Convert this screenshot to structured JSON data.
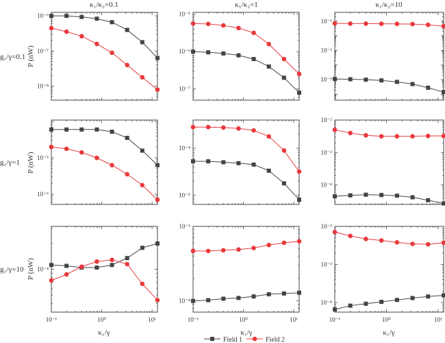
{
  "chart_data": {
    "type": "line",
    "scale": "log-log",
    "column_titles": [
      "κ₁/κ₂=0.1",
      "κ₁/κ₂=1",
      "κ₁/κ₂=10"
    ],
    "row_labels": [
      "g₁/γ=0.1",
      "g₁/γ=1",
      "g₁/γ=10"
    ],
    "ylabel": "P (nW)",
    "xlabel": "κ₁/γ",
    "x": [
      0.1,
      0.2,
      0.4,
      0.8,
      1.6,
      3.2,
      6.4,
      12.8
    ],
    "xlim": [
      0.1,
      12.8
    ],
    "xticks": [
      {
        "value": 0.1,
        "label": "10⁻¹"
      },
      {
        "value": 1,
        "label": "10⁰"
      },
      {
        "value": 10,
        "label": "10¹"
      }
    ],
    "legend": {
      "placement": "bottom-center",
      "entries": [
        "Field 1",
        "Field 2"
      ]
    },
    "series_colors": {
      "Field 1": "#444444",
      "Field 2": "#e8393d"
    },
    "panels": [
      {
        "row": 0,
        "col": 0,
        "ylim_log10": [
          -8.4,
          -5.9
        ],
        "yticks": [
          {
            "log10": -6,
            "label": "10⁻⁶"
          },
          {
            "log10": -7,
            "label": "10⁻⁷"
          },
          {
            "log10": -8,
            "label": "10⁻⁸"
          }
        ],
        "series": [
          {
            "name": "Field 1",
            "log10_values": [
              -6.0,
              -6.0,
              -6.03,
              -6.08,
              -6.18,
              -6.4,
              -6.75,
              -7.2
            ]
          },
          {
            "name": "Field 2",
            "log10_values": [
              -6.35,
              -6.45,
              -6.58,
              -6.8,
              -7.05,
              -7.4,
              -7.75,
              -8.1
            ]
          }
        ]
      },
      {
        "row": 0,
        "col": 1,
        "ylim_log10": [
          -7.3,
          -4.95
        ],
        "yticks": [
          {
            "log10": -5,
            "label": "10⁻⁵"
          },
          {
            "log10": -6,
            "label": "10⁻⁶"
          },
          {
            "log10": -7,
            "label": "10⁻⁷"
          }
        ],
        "series": [
          {
            "name": "Field 1",
            "log10_values": [
              -6.0,
              -6.02,
              -6.05,
              -6.1,
              -6.2,
              -6.4,
              -6.7,
              -7.1
            ]
          },
          {
            "name": "Field 2",
            "log10_values": [
              -5.25,
              -5.26,
              -5.3,
              -5.37,
              -5.5,
              -5.8,
              -6.2,
              -6.6
            ]
          }
        ]
      },
      {
        "row": 0,
        "col": 2,
        "ylim_log10": [
          -6.4,
          -0.4
        ],
        "yticks": [
          {
            "log10": -1,
            "label": "10⁻¹"
          },
          {
            "log10": -3,
            "label": "10⁻³"
          },
          {
            "log10": -5,
            "label": "10⁻⁵"
          }
        ],
        "series": [
          {
            "name": "Field 1",
            "log10_values": [
              -4.95,
              -4.97,
              -5.0,
              -5.05,
              -5.15,
              -5.3,
              -5.55,
              -5.85
            ]
          },
          {
            "name": "Field 2",
            "log10_values": [
              -1.15,
              -1.17,
              -1.17,
              -1.18,
              -1.19,
              -1.2,
              -1.25,
              -1.35
            ]
          }
        ]
      },
      {
        "row": 1,
        "col": 0,
        "ylim_log10": [
          -6.28,
          -3.96
        ],
        "yticks": [
          {
            "log10": -5,
            "label": "10⁻⁵"
          },
          {
            "log10": -6,
            "label": "10⁻⁶"
          }
        ],
        "series": [
          {
            "name": "Field 1",
            "log10_values": [
              -4.22,
              -4.22,
              -4.22,
              -4.22,
              -4.28,
              -4.45,
              -4.8,
              -5.2
            ]
          },
          {
            "name": "Field 2",
            "log10_values": [
              -4.7,
              -4.75,
              -4.85,
              -5.0,
              -5.2,
              -5.45,
              -5.75,
              -6.15
            ]
          }
        ]
      },
      {
        "row": 1,
        "col": 1,
        "ylim_log10": [
          -5.2,
          -3.4
        ],
        "yticks": [
          {
            "log10": -4,
            "label": "10⁻⁴"
          },
          {
            "log10": -5,
            "label": "10⁻⁵"
          }
        ],
        "series": [
          {
            "name": "Field 1",
            "log10_values": [
              -4.28,
              -4.28,
              -4.3,
              -4.32,
              -4.35,
              -4.48,
              -4.75,
              -5.1
            ]
          },
          {
            "name": "Field 2",
            "log10_values": [
              -3.55,
              -3.55,
              -3.56,
              -3.58,
              -3.62,
              -3.75,
              -4.05,
              -4.5
            ]
          }
        ]
      },
      {
        "row": 1,
        "col": 2,
        "ylim_log10": [
          -4.6,
          -2.0
        ],
        "yticks": [
          {
            "log10": -2,
            "label": "10⁻²"
          },
          {
            "log10": -3,
            "label": "10⁻³"
          },
          {
            "log10": -4,
            "label": "10⁻⁴"
          }
        ],
        "series": [
          {
            "name": "Field 1",
            "log10_values": [
              -4.35,
              -4.32,
              -4.3,
              -4.31,
              -4.33,
              -4.38,
              -4.47,
              -4.57
            ]
          },
          {
            "name": "Field 2",
            "log10_values": [
              -2.3,
              -2.4,
              -2.47,
              -2.5,
              -2.5,
              -2.5,
              -2.49,
              -2.49
            ]
          }
        ]
      },
      {
        "row": 2,
        "col": 0,
        "ylim_log10": [
          -4.5,
          -3.5
        ],
        "yticks": [
          {
            "log10": -4,
            "label": "10⁻⁴"
          }
        ],
        "series": [
          {
            "name": "Field 1",
            "log10_values": [
              -3.95,
              -3.96,
              -3.98,
              -3.98,
              -3.95,
              -3.87,
              -3.75,
              -3.7
            ]
          },
          {
            "name": "Field 2",
            "log10_values": [
              -4.13,
              -4.06,
              -3.97,
              -3.91,
              -3.89,
              -3.94,
              -4.17,
              -4.36
            ]
          }
        ]
      },
      {
        "row": 2,
        "col": 1,
        "ylim_log10": [
          -4.15,
          -3.0
        ],
        "yticks": [
          {
            "log10": -3,
            "label": "10⁻³"
          },
          {
            "log10": -4,
            "label": "10⁻⁴"
          }
        ],
        "series": [
          {
            "name": "Field 1",
            "log10_values": [
              -4.0,
              -3.99,
              -3.97,
              -3.96,
              -3.94,
              -3.91,
              -3.9,
              -3.89
            ]
          },
          {
            "name": "Field 2",
            "log10_values": [
              -3.33,
              -3.33,
              -3.32,
              -3.31,
              -3.29,
              -3.25,
              -3.22,
              -3.2
            ]
          }
        ]
      },
      {
        "row": 2,
        "col": 2,
        "ylim_log10": [
          -4.25,
          -2.0
        ],
        "yticks": [
          {
            "log10": -2,
            "label": "10⁻²"
          },
          {
            "log10": -3,
            "label": "10⁻³"
          },
          {
            "log10": -4,
            "label": "10⁻⁴"
          }
        ],
        "series": [
          {
            "name": "Field 1",
            "log10_values": [
              -4.18,
              -4.08,
              -4.03,
              -3.98,
              -3.93,
              -3.88,
              -3.84,
              -3.81
            ]
          },
          {
            "name": "Field 2",
            "log10_values": [
              -2.15,
              -2.25,
              -2.33,
              -2.37,
              -2.42,
              -2.46,
              -2.47,
              -2.43
            ]
          }
        ]
      }
    ]
  }
}
